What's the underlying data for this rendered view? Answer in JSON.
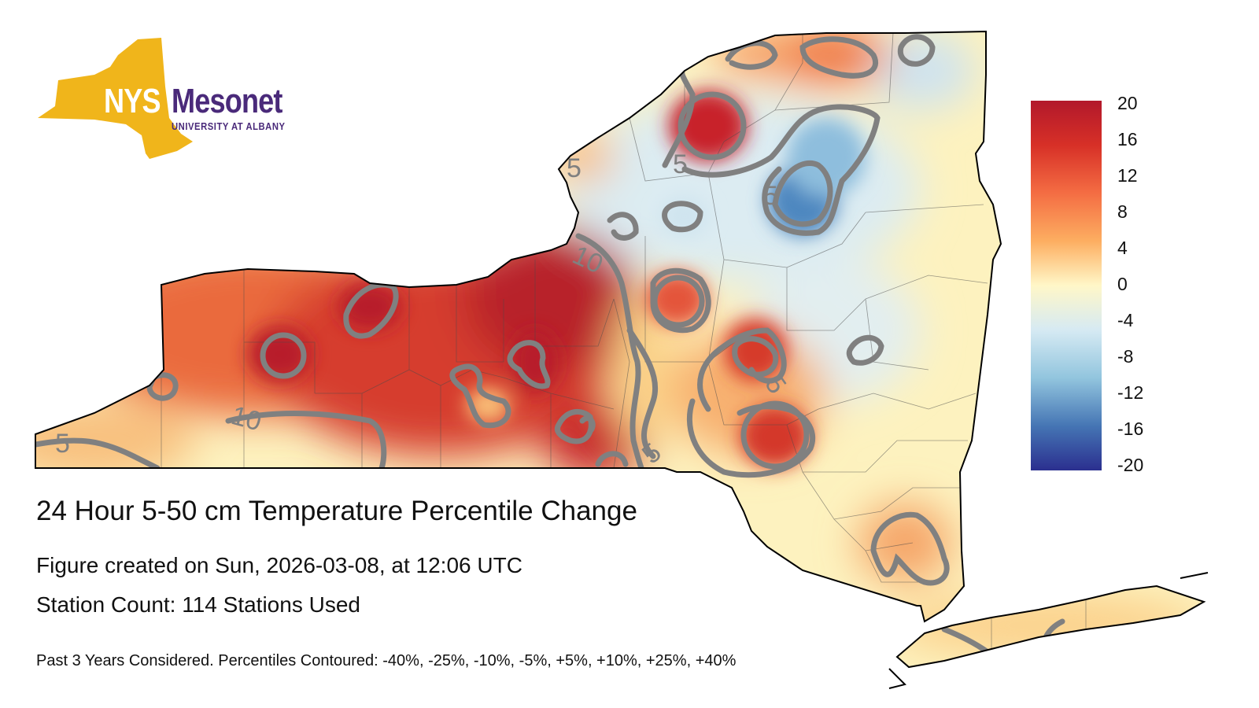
{
  "logo": {
    "nys": "NYS",
    "mesonet": "Mesonet",
    "subtitle": "UNIVERSITY AT ALBANY",
    "colors": {
      "gold": "#f0b51b",
      "purple": "#4a2a7a"
    }
  },
  "title": "24 Hour 5-50 cm Temperature Percentile Change",
  "created": "Figure created on Sun, 2026-03-08, at 12:06 UTC",
  "station_count": "Station Count: 114 Stations Used",
  "footnote": "Past 3 Years Considered. Percentiles Contoured: -40%, -25%, -10%, -5%, +5%, +10%, +25%, +40%",
  "colorbar": {
    "ticks": [
      "20",
      "16",
      "12",
      "8",
      "4",
      "0",
      "-4",
      "-8",
      "-12",
      "-16",
      "-20"
    ],
    "colors": [
      "#b2182b",
      "#d6604d",
      "#f4a582",
      "#fddbc7",
      "#fff7d6",
      "#d1e5f0",
      "#92c5de",
      "#4393c3",
      "#2166ac",
      "#2b2f8f"
    ]
  },
  "contour_labels": [
    "5",
    "5",
    "5",
    "10",
    "5",
    "10",
    "5",
    "5"
  ],
  "colors": {
    "background": "#ffffff",
    "contour": "#808080",
    "border": "#000000"
  }
}
